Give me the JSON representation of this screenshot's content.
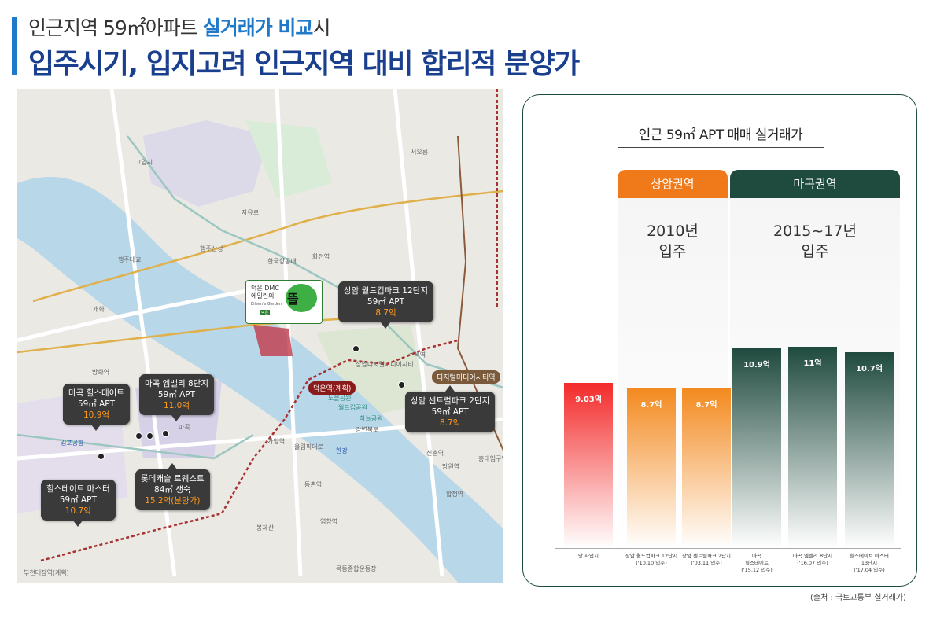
{
  "header": {
    "subtitle_pre": "인근지역 59㎡아파트 ",
    "subtitle_highlight": "실거래가 비교",
    "subtitle_post": "시",
    "title": "입주시기, 입지고려 인근지역 대비 합리적 분양가"
  },
  "map": {
    "site": {
      "line1": "덕은 DMC",
      "line2": "에일린의",
      "line3": "Eileen's Garden",
      "line4": "덕은",
      "name": "뜰"
    },
    "callouts": [
      {
        "id": "sangam12",
        "l1": "상암 월드컵파크 12단지",
        "l2": "59㎡ APT",
        "price": "8.7억"
      },
      {
        "id": "mgheals",
        "l1": "마곡 힐스테이트",
        "l2": "59㎡ APT",
        "price": "10.9억"
      },
      {
        "id": "mgemvalley",
        "l1": "마곡 엠밸리 8단지",
        "l2": "59㎡ APT",
        "price": "11.0억"
      },
      {
        "id": "sangamcentral",
        "l1": "상암 센트럴파크 2단지",
        "l2": "59㎡ APT",
        "price": "8.7억"
      },
      {
        "id": "lotte",
        "l1": "롯데캐슬 르웨스트",
        "l2": "84㎡ 생숙",
        "price": "15.2억(분양가)"
      },
      {
        "id": "hsmaster",
        "l1": "힐스테이트 마스터",
        "l2": "59㎡ APT",
        "price": "10.7억"
      }
    ],
    "labels": {
      "goyang": "고양시",
      "seooreung": "서오릉",
      "hkaero": "한국항공대",
      "haengju": "행주산성",
      "haengjudaegyo": "행주대교",
      "gangseo": "개화",
      "gimpo_airport": "김포공항",
      "banghwa": "방화역",
      "magok": "마곡",
      "sangam_dmc": "상암디지털미디어시티",
      "dmc_station": "디지털미디어시티역",
      "deokeun_station": "덕은역",
      "deokeun_note": "(계획)",
      "worldcup_park": "월드컵공원",
      "haneul_park": "하늘공원",
      "noeul_park": "노을공원",
      "gayang": "가양역",
      "hwajeon": "화전역",
      "susaek": "수색역",
      "hongdae": "홍대입구역",
      "hapjeong": "합정역",
      "mokdong": "목동종합운동장",
      "bonghwasan": "봉제산",
      "yeomchang": "염창역",
      "deungchon": "등촌역",
      "bucheon": "부천대장역",
      "bucheon_note": "(계획)",
      "sinchon": "신촌역",
      "mangwon": "망원역",
      "gangbyeon": "강변북로",
      "olympic": "올림픽대로",
      "han_river": "한강",
      "jayuro": "자유로"
    }
  },
  "panel": {
    "title": "인근 59㎡ APT 매매 실거래가",
    "region_sangam": "상암권역",
    "region_magok": "마곡권역",
    "period_sangam_1": "2010년",
    "period_sangam_2": "입주",
    "period_magok_1": "2015~17년",
    "period_magok_2": "입주"
  },
  "chart_data": {
    "type": "bar",
    "title": "인근 59㎡ APT 매매 실거래가",
    "categories": [
      "당 사업지",
      "상암 월드컵파크 12단지 ('10.10 입주)",
      "상암 센트럴파크 2단지 ('03.11 입주)",
      "마곡 힐스테이트 ('15.12 입주)",
      "마곡 엠밸리 8단지 ('16.07 입주)",
      "힐스테이트 마스터 13단지 ('17.04 입주)"
    ],
    "values": [
      9.03,
      8.7,
      8.7,
      10.9,
      11.0,
      10.7
    ],
    "value_labels": [
      "9.03억",
      "8.7억",
      "8.7억",
      "10.9억",
      "11억",
      "10.7억"
    ],
    "xlabels": [
      {
        "l1": "당 사업지",
        "l2": "",
        "l3": ""
      },
      {
        "l1": "상암 월드컵파크 12단지",
        "l2": "('10.10 입주)",
        "l3": ""
      },
      {
        "l1": "상암 센트럴파크 2단지",
        "l2": "('03.11 입주)",
        "l3": ""
      },
      {
        "l1": "마곡",
        "l2": "힐스테이트",
        "l3": "('15.12 입주)"
      },
      {
        "l1": "마곡 엠밸리 8단지",
        "l2": "('16.07 입주)",
        "l3": ""
      },
      {
        "l1": "힐스테이트 마스터",
        "l2": "13단지",
        "l3": "('17.04 입주)"
      }
    ],
    "colors": [
      "#f42a2a",
      "#f38a1f",
      "#f38a1f",
      "#1f4a3e",
      "#1f4a3e",
      "#1f4a3e"
    ],
    "unit": "억"
  },
  "footer": {
    "source": "(출처 : 국토교통부 실거래가)"
  }
}
